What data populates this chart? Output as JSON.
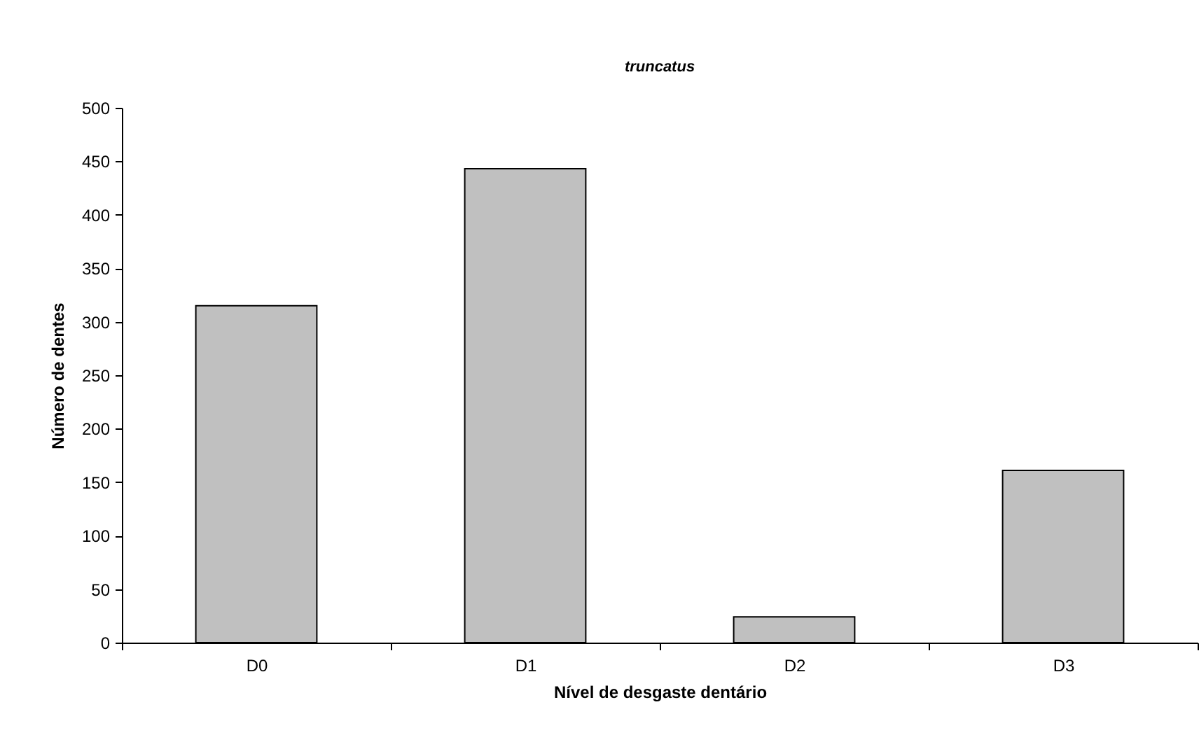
{
  "chart_data": {
    "type": "bar",
    "title": "truncatus",
    "xlabel": "Nível de desgaste dentário",
    "ylabel": "Número de dentes",
    "categories": [
      "D0",
      "D1",
      "D2",
      "D3"
    ],
    "values": [
      315,
      443,
      24,
      161
    ],
    "color": "#c0c0c0",
    "ylim": [
      0,
      500
    ],
    "yticks": [
      0,
      50,
      100,
      150,
      200,
      250,
      300,
      350,
      400,
      450,
      500
    ],
    "grid": false
  }
}
